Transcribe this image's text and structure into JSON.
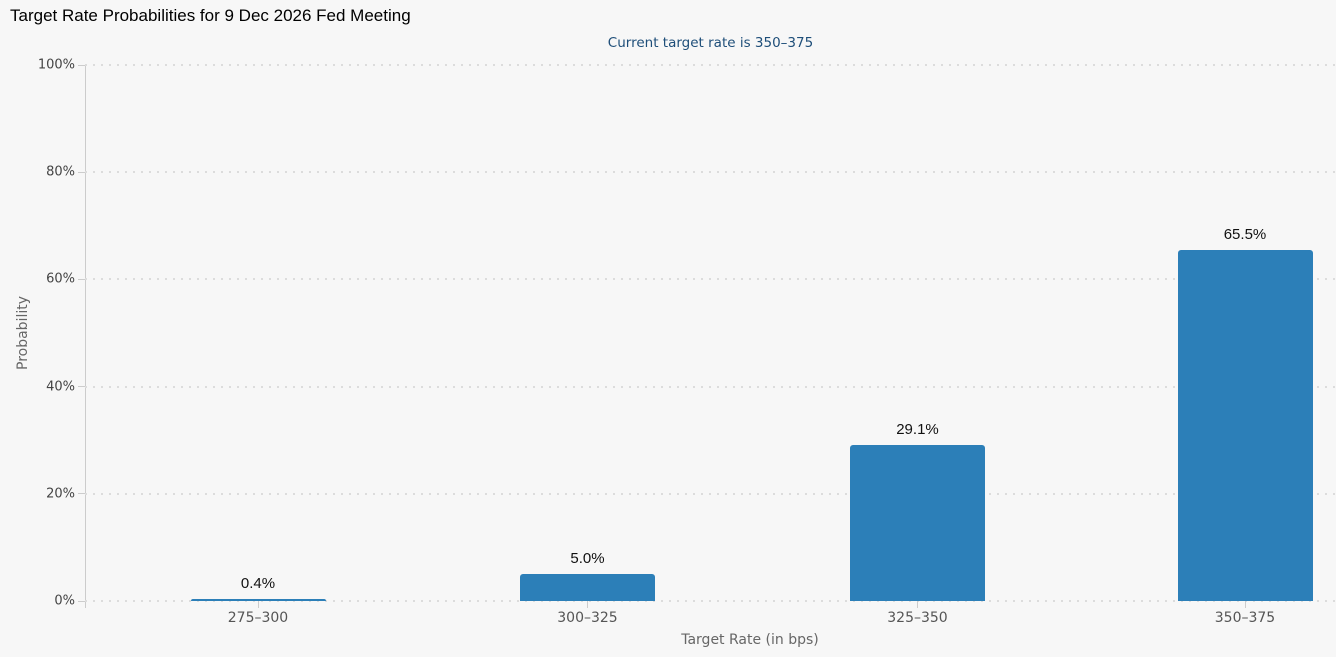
{
  "colors": {
    "background": "#f7f7f7",
    "bar": "#2c7fb8",
    "subtitle_text": "#1e4e79",
    "axis_line": "#cccccc",
    "gridline": "#dcdcdc"
  },
  "chart_data": {
    "type": "bar",
    "title": "Target Rate Probabilities for 9 Dec 2026 Fed Meeting",
    "subtitle": "Current target rate is 350–375",
    "categories": [
      "275–300",
      "300–325",
      "325–350",
      "350–375"
    ],
    "values": [
      0.4,
      5.0,
      29.1,
      65.5
    ],
    "value_labels": [
      "0.4%",
      "5.0%",
      "29.1%",
      "65.5%"
    ],
    "xlabel": "Target Rate (in bps)",
    "ylabel": "Probability",
    "ylim": [
      0,
      100
    ],
    "yticks": [
      0,
      20,
      40,
      60,
      80,
      100
    ],
    "ytick_labels": [
      "0%",
      "20%",
      "40%",
      "60%",
      "80%",
      "100%"
    ],
    "grid": "dotted-horizontal",
    "legend": "none",
    "bar_color": "#2c7fb8"
  }
}
